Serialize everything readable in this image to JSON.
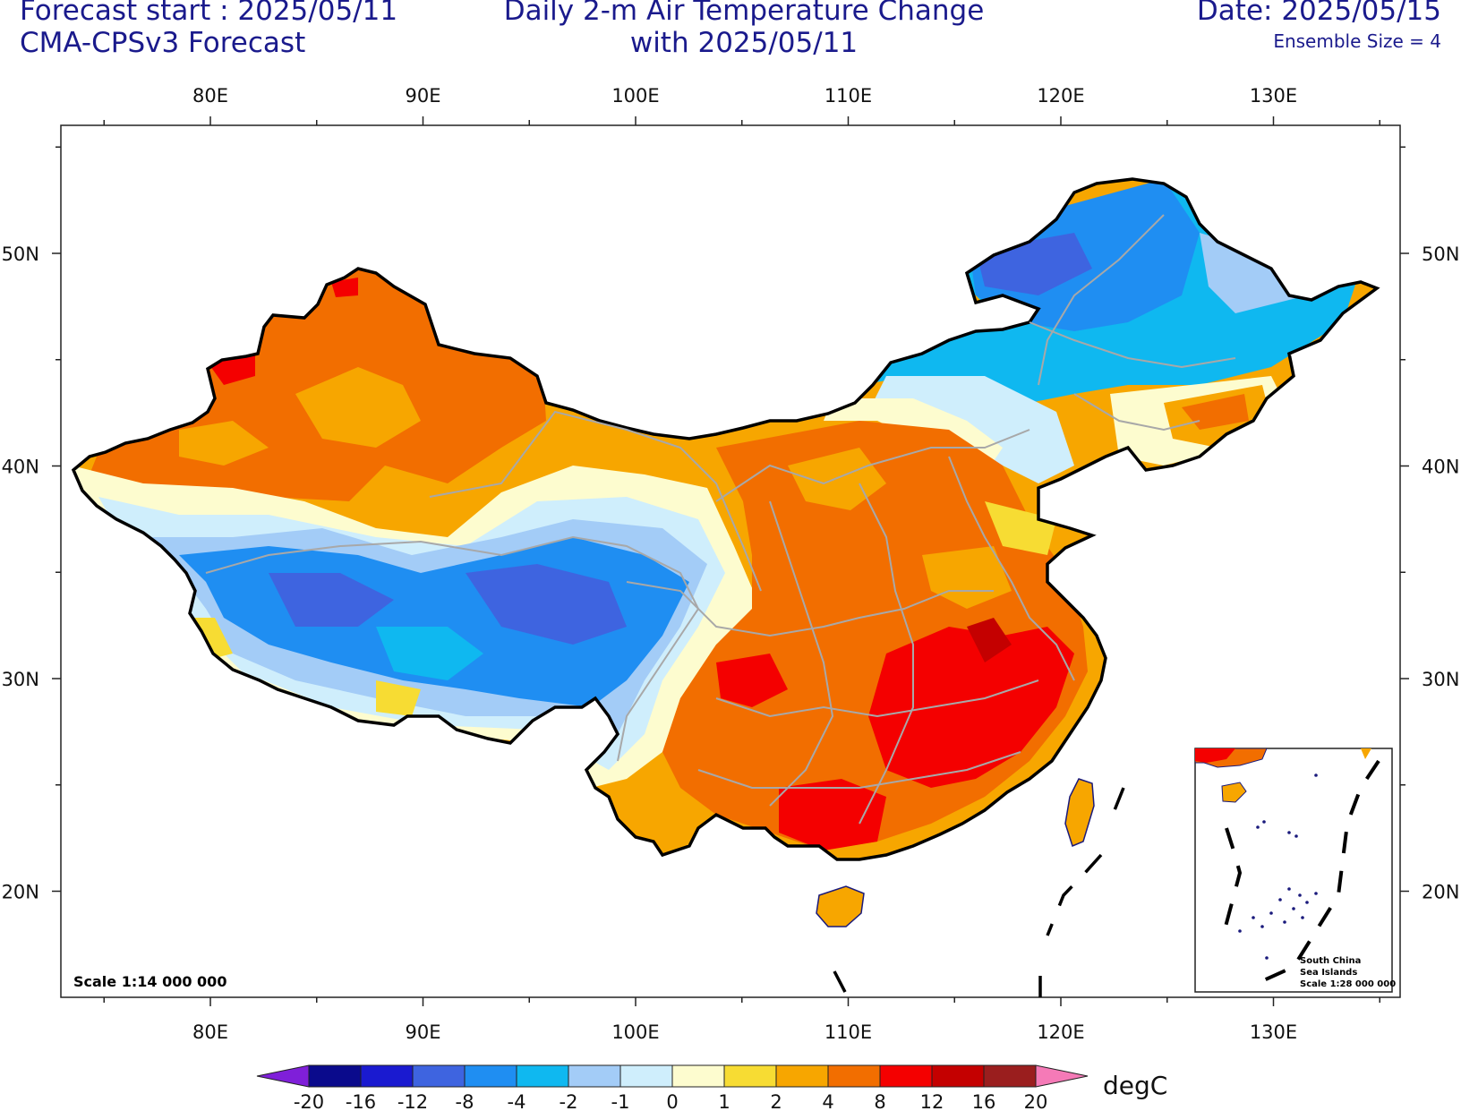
{
  "header": {
    "left_line1": "Forecast start : 2025/05/11",
    "left_line2": "CMA-CPSv3 Forecast",
    "center_line1": "Daily 2-m Air Temperature Change",
    "center_line2": "with 2025/05/11",
    "right_line1": "Date: 2025/05/15",
    "right_line2": "Ensemble Size = 4"
  },
  "map": {
    "lon_labels": [
      "80E",
      "90E",
      "100E",
      "110E",
      "120E",
      "130E"
    ],
    "lat_labels": [
      "50N",
      "40N",
      "30N",
      "20N"
    ],
    "scale_text": "Scale 1:14 000 000",
    "inset": {
      "title": "South China",
      "title2": "Sea Islands",
      "scale": "Scale 1:28 000 000"
    }
  },
  "colorbar": {
    "unit": "degC",
    "levels": [
      "-20",
      "-16",
      "-12",
      "-8",
      "-4",
      "-2",
      "-1",
      "0",
      "1",
      "2",
      "4",
      "8",
      "12",
      "16",
      "20"
    ],
    "colors": [
      "#7f1fd9",
      "#0a0a8c",
      "#1a1ad0",
      "#3e64e0",
      "#1f8ef2",
      "#0fb8f0",
      "#a3ccf7",
      "#cfeefc",
      "#fdfccf",
      "#f7dc33",
      "#f7a600",
      "#f26e00",
      "#f40000",
      "#c40000",
      "#9a1e1e",
      "#f57ab7"
    ]
  }
}
